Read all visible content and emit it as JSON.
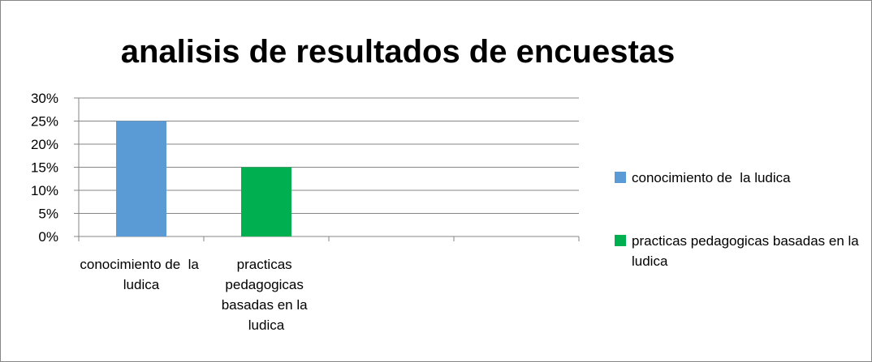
{
  "chart_data": {
    "type": "bar",
    "title": "analisis de resultados de encuestas",
    "categories": [
      "conocimiento de  la ludica",
      "practicas pedagogicas basadas en la ludica",
      null,
      null
    ],
    "values": [
      25,
      15,
      null,
      null
    ],
    "colors": [
      "#5b9bd5",
      "#00b050"
    ],
    "ylim": [
      0,
      30
    ],
    "yticks": [
      {
        "value": 0,
        "label": "0%"
      },
      {
        "value": 5,
        "label": "5%"
      },
      {
        "value": 10,
        "label": "10%"
      },
      {
        "value": 15,
        "label": "15%"
      },
      {
        "value": 20,
        "label": "20%"
      },
      {
        "value": 25,
        "label": "25%"
      },
      {
        "value": 30,
        "label": "30%"
      }
    ],
    "grid": true,
    "legend": "right"
  }
}
